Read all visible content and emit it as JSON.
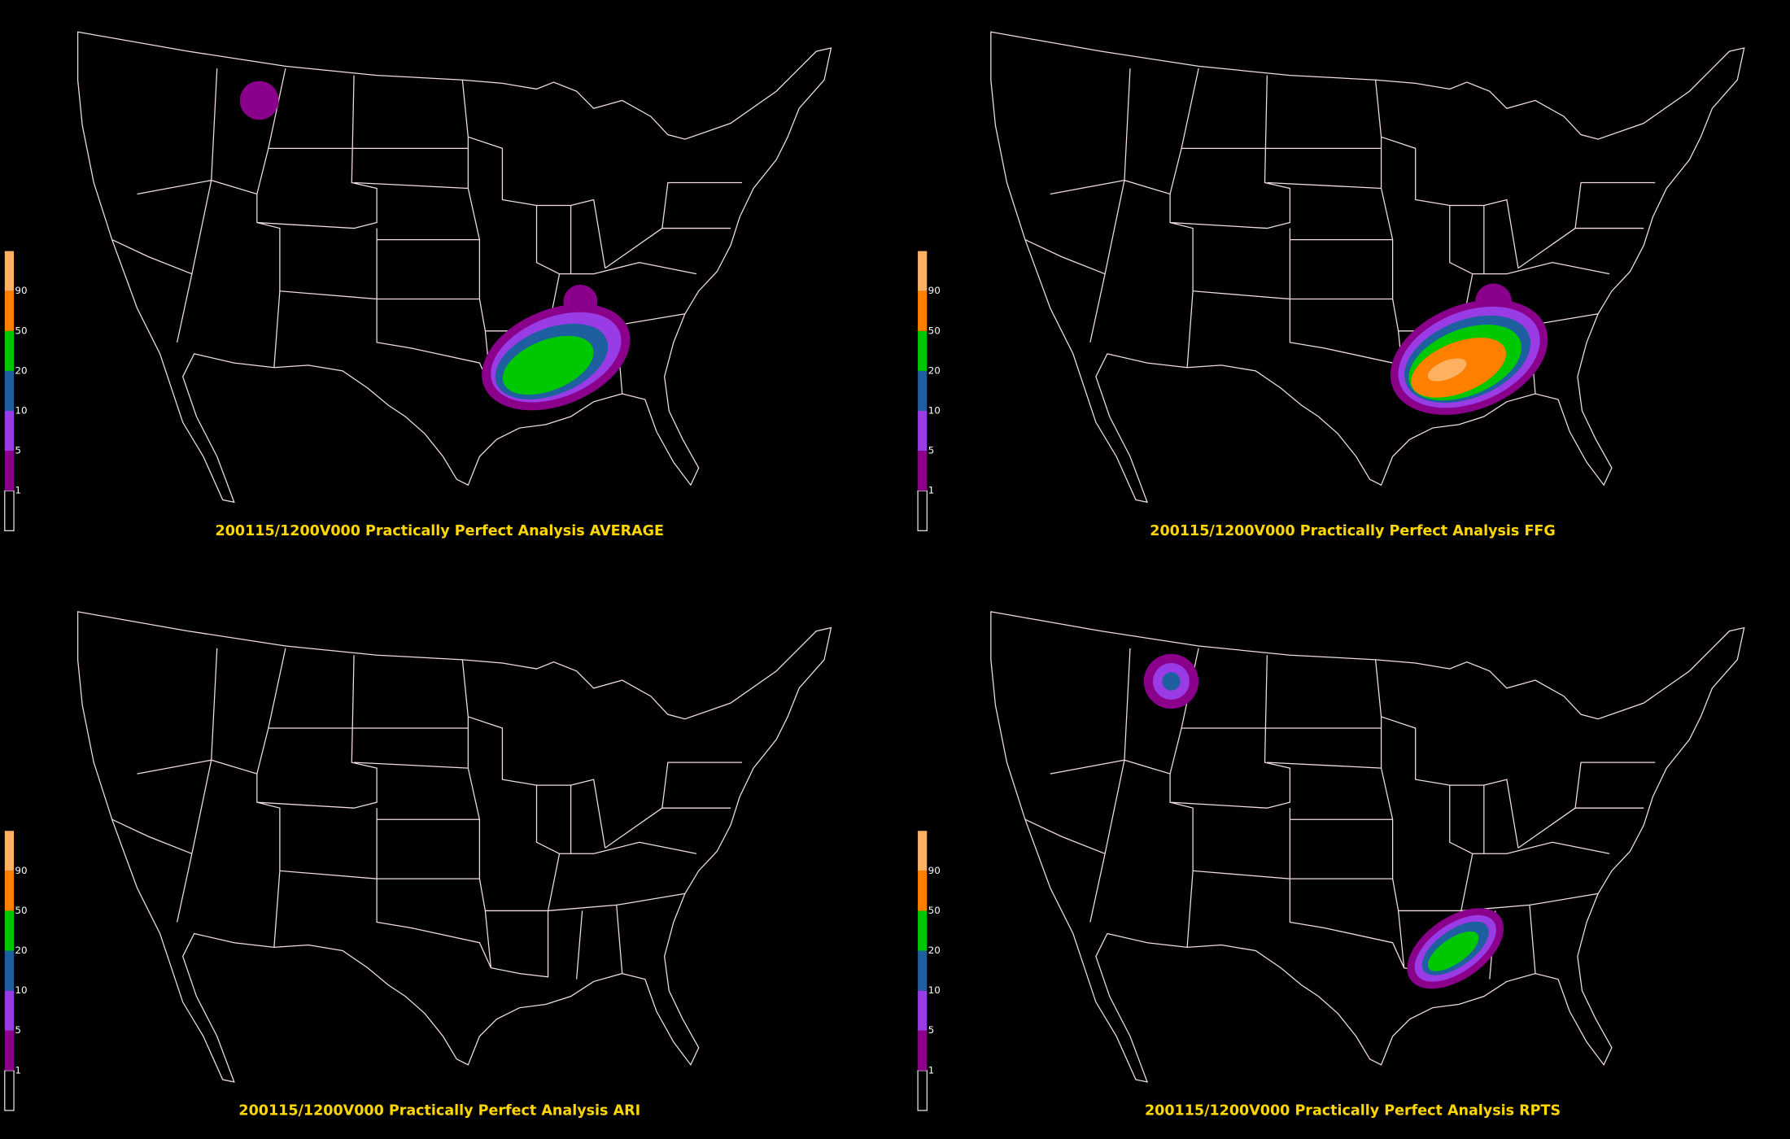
{
  "panels": [
    {
      "title": "200115/1200V000 Practically Perfect Analysis AVERAGE"
    },
    {
      "title": "200115/1200V000 Practically Perfect Analysis FFG"
    },
    {
      "title": "200115/1200V000 Practically Perfect Analysis ARI"
    },
    {
      "title": "200115/1200V000 Practically Perfect Analysis RPTS"
    }
  ],
  "colorbar": {
    "labels": [
      1,
      5,
      10,
      20,
      50,
      90
    ],
    "colors": [
      "#000000",
      "#8b008b",
      "#9a3ce6",
      "#1e5fa0",
      "#00c800",
      "#ff8000",
      "#ffb060"
    ]
  }
}
